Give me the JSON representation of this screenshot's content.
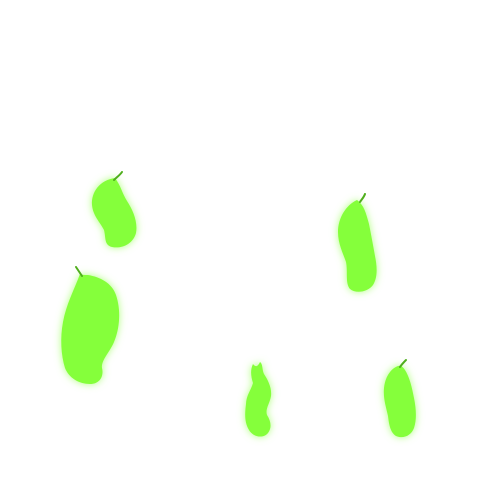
{
  "canvas": {
    "background": "#ffffff"
  },
  "style": {
    "fill_color": "#85ff3a",
    "glow_color": "#a8ff70",
    "stem_color": "#4fae1c"
  },
  "shapes": [
    {
      "name": "green-blob-1",
      "kind": "leaf-blob"
    },
    {
      "name": "green-blob-2",
      "kind": "leaf-blob"
    },
    {
      "name": "green-blob-3",
      "kind": "leaf-blob"
    },
    {
      "name": "green-blob-4",
      "kind": "leaf-blob"
    },
    {
      "name": "green-blob-5",
      "kind": "leaf-blob"
    }
  ]
}
